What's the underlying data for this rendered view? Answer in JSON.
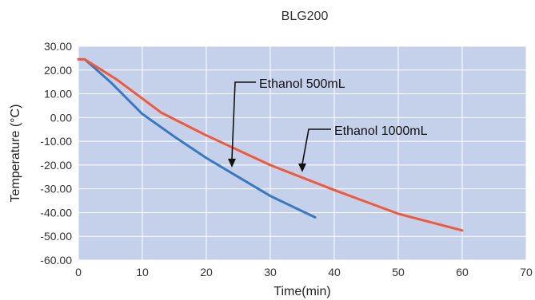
{
  "chart_data": {
    "type": "line",
    "title": "BLG200",
    "xlabel": "Time(min)",
    "ylabel": "Temperature (°C)",
    "xlim": [
      0,
      70
    ],
    "ylim": [
      -60,
      30
    ],
    "x_ticks": [
      0,
      10,
      20,
      30,
      40,
      50,
      60,
      70
    ],
    "y_ticks": [
      30,
      20,
      10,
      0,
      -10,
      -20,
      -30,
      -40,
      -50,
      -60
    ],
    "y_tick_labels": [
      "30.00",
      "20.00",
      "10.00",
      "0.00",
      "-10.00",
      "-20.00",
      "-30.00",
      "-40.00",
      "-50.00",
      "-60.00"
    ],
    "grid": true,
    "plot_background": "#c5d0ea",
    "series": [
      {
        "name": "Ethanol 500mL",
        "color": "#3a78c2",
        "points": [
          [
            0,
            24.5
          ],
          [
            1,
            24.5
          ],
          [
            5,
            15
          ],
          [
            10,
            1.5
          ],
          [
            15,
            -8
          ],
          [
            20,
            -17
          ],
          [
            25,
            -25
          ],
          [
            30,
            -33
          ],
          [
            37,
            -42
          ]
        ]
      },
      {
        "name": "Ethanol 1000mL",
        "color": "#ee5a3c",
        "points": [
          [
            0,
            24.5
          ],
          [
            1,
            24.5
          ],
          [
            6,
            16
          ],
          [
            13,
            2
          ],
          [
            20,
            -7.5
          ],
          [
            30,
            -20
          ],
          [
            40,
            -30.5
          ],
          [
            50,
            -40.5
          ],
          [
            60,
            -47.5
          ]
        ]
      }
    ],
    "annotations": [
      {
        "label": "Ethanol 500mL",
        "series": 0,
        "x": 24,
        "y": -21
      },
      {
        "label": "Ethanol 1000mL",
        "series": 1,
        "x": 35,
        "y": -23
      }
    ]
  }
}
